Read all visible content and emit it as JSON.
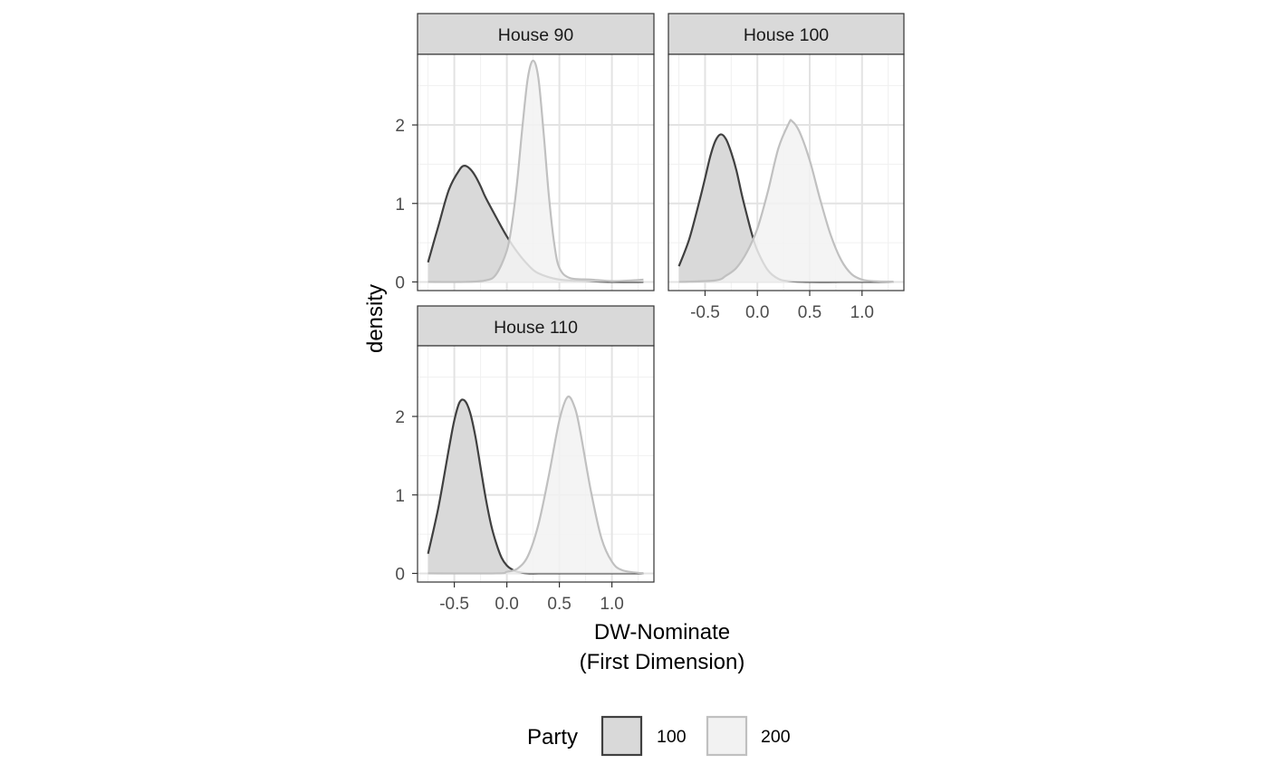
{
  "chart_data": {
    "type": "area",
    "title": "",
    "xlabel": [
      "DW-Nominate",
      "(First Dimension)"
    ],
    "ylabel": "density",
    "xlim": [
      -0.85,
      1.4
    ],
    "ylim": [
      -0.11,
      2.9
    ],
    "x_ticks": [
      -0.5,
      0.0,
      0.5,
      1.0
    ],
    "x_tick_labels": [
      "-0.5",
      "0.0",
      "0.5",
      "1.0"
    ],
    "y_ticks": [
      0,
      1,
      2
    ],
    "y_tick_labels": [
      "0",
      "1",
      "2"
    ],
    "grid": true,
    "legend": {
      "title": "Party",
      "position": "bottom",
      "entries": [
        {
          "label": "100",
          "fill": "#d9d9d9",
          "stroke": "#404040"
        },
        {
          "label": "200",
          "fill": "#f2f2f2",
          "stroke": "#c0c0c0"
        }
      ]
    },
    "panels": [
      {
        "strip": "House 90",
        "series": [
          {
            "party": "100",
            "x": [
              -0.75,
              -0.65,
              -0.55,
              -0.45,
              -0.4,
              -0.35,
              -0.3,
              -0.25,
              -0.2,
              -0.1,
              0.0,
              0.1,
              0.2,
              0.3,
              0.5,
              0.8,
              1.0,
              1.3
            ],
            "y": [
              0.25,
              0.72,
              1.18,
              1.43,
              1.48,
              1.44,
              1.35,
              1.22,
              1.07,
              0.82,
              0.58,
              0.38,
              0.22,
              0.11,
              0.03,
              0.01,
              0.0,
              0.0
            ]
          },
          {
            "party": "200",
            "x": [
              -0.75,
              -0.4,
              -0.2,
              -0.1,
              0.0,
              0.05,
              0.1,
              0.15,
              0.2,
              0.25,
              0.3,
              0.35,
              0.4,
              0.45,
              0.5,
              0.6,
              0.8,
              1.0,
              1.2,
              1.3
            ],
            "y": [
              0.0,
              0.0,
              0.02,
              0.1,
              0.4,
              0.75,
              1.3,
              2.0,
              2.6,
              2.82,
              2.6,
              1.9,
              1.1,
              0.5,
              0.18,
              0.05,
              0.03,
              0.01,
              0.02,
              0.03
            ]
          }
        ]
      },
      {
        "strip": "House 100",
        "series": [
          {
            "party": "100",
            "x": [
              -0.75,
              -0.65,
              -0.55,
              -0.5,
              -0.45,
              -0.4,
              -0.35,
              -0.3,
              -0.25,
              -0.2,
              -0.15,
              -0.1,
              -0.05,
              0.0,
              0.1,
              0.2,
              0.3,
              0.5,
              0.8,
              1.3
            ],
            "y": [
              0.2,
              0.55,
              1.05,
              1.32,
              1.6,
              1.8,
              1.88,
              1.82,
              1.65,
              1.42,
              1.12,
              0.85,
              0.6,
              0.4,
              0.15,
              0.04,
              0.01,
              0.0,
              0.0,
              0.0
            ]
          },
          {
            "party": "200",
            "x": [
              -0.75,
              -0.4,
              -0.3,
              -0.2,
              -0.1,
              0.0,
              0.1,
              0.2,
              0.3,
              0.33,
              0.4,
              0.5,
              0.6,
              0.7,
              0.8,
              0.9,
              1.0,
              1.1,
              1.3
            ],
            "y": [
              0.0,
              0.02,
              0.08,
              0.18,
              0.38,
              0.68,
              1.15,
              1.7,
              2.02,
              2.05,
              1.92,
              1.55,
              1.05,
              0.6,
              0.28,
              0.1,
              0.03,
              0.01,
              0.0
            ]
          }
        ]
      },
      {
        "strip": "House 110",
        "series": [
          {
            "party": "100",
            "x": [
              -0.75,
              -0.65,
              -0.55,
              -0.5,
              -0.45,
              -0.4,
              -0.35,
              -0.3,
              -0.25,
              -0.2,
              -0.15,
              -0.1,
              -0.05,
              0.0,
              0.05,
              0.1,
              0.2,
              0.3,
              0.5,
              1.3
            ],
            "y": [
              0.25,
              0.85,
              1.6,
              1.95,
              2.18,
              2.2,
              2.05,
              1.75,
              1.35,
              0.95,
              0.62,
              0.38,
              0.2,
              0.1,
              0.05,
              0.02,
              0.0,
              0.0,
              0.0,
              0.0
            ]
          },
          {
            "party": "200",
            "x": [
              -0.75,
              -0.1,
              0.0,
              0.1,
              0.2,
              0.3,
              0.4,
              0.5,
              0.58,
              0.65,
              0.7,
              0.8,
              0.9,
              1.0,
              1.1,
              1.3
            ],
            "y": [
              0.0,
              0.0,
              0.02,
              0.06,
              0.22,
              0.62,
              1.25,
              1.95,
              2.25,
              2.1,
              1.8,
              1.05,
              0.45,
              0.15,
              0.04,
              0.0
            ]
          }
        ]
      }
    ]
  }
}
